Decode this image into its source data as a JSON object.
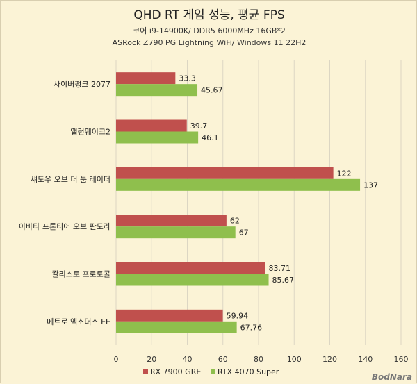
{
  "chart_data": {
    "type": "bar",
    "orientation": "horizontal",
    "title": "QHD RT 게임 성능, 평균 FPS",
    "subtitle_lines": [
      "코어 i9-14900K/ DDR5 6000MHz 16GB*2",
      "ASRock Z790 PG Lightning WiFi/ Windows 11 22H2"
    ],
    "categories": [
      "사이버펑크 2077",
      "앨런웨이크2",
      "섀도우 오브 더 툼 레이더",
      "아바타 프론티어 오브 판도라",
      "칼리스토 프로토콜",
      "메트로 엑소더스 EE"
    ],
    "series": [
      {
        "name": "RX 7900 GRE",
        "color": "#c0504d",
        "values": [
          33.3,
          39.7,
          122,
          62,
          83.71,
          59.94
        ]
      },
      {
        "name": "RTX 4070 Super",
        "color": "#8fbf4d",
        "values": [
          45.67,
          46.1,
          137,
          67,
          85.67,
          67.76
        ]
      }
    ],
    "value_labels": [
      [
        "33.3",
        "39.7",
        "122",
        "62",
        "83.71",
        "59.94"
      ],
      [
        "45.67",
        "46.1",
        "137",
        "67",
        "85.67",
        "67.76"
      ]
    ],
    "xlim": [
      0,
      160
    ],
    "xticks": [
      0,
      20,
      40,
      60,
      80,
      100,
      120,
      140,
      160
    ],
    "xtick_labels": [
      "0",
      "20",
      "40",
      "60",
      "80",
      "100",
      "120",
      "140",
      "160"
    ],
    "grid": true,
    "legend_position": "bottom",
    "gridline_color": "#dcd6c3"
  },
  "watermark": "BodNara"
}
